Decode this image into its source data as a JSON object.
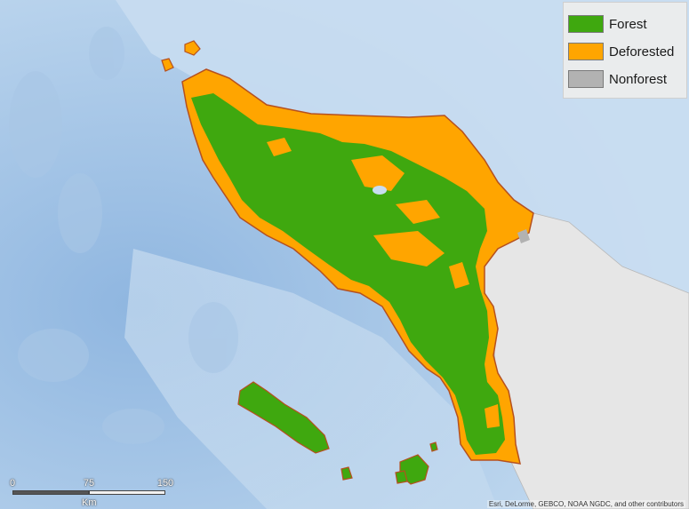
{
  "legend": {
    "items": [
      {
        "label": "Forest",
        "color": "#3fa80f"
      },
      {
        "label": "Deforested",
        "color": "#ffa500"
      },
      {
        "label": "Nonforest",
        "color": "#b2b2b2"
      }
    ]
  },
  "scale_bar": {
    "ticks": [
      "0",
      "75",
      "150"
    ],
    "unit": "Km"
  },
  "attribution": "Esri, DeLorme, GEBCO, NOAA NGDC, and other contributors",
  "colors": {
    "ocean": "#b9d3ec",
    "land_basemap": "#e6e6e6",
    "forest": "#3fa80f",
    "deforested": "#ffa500",
    "region_outline": "#b5501f"
  }
}
